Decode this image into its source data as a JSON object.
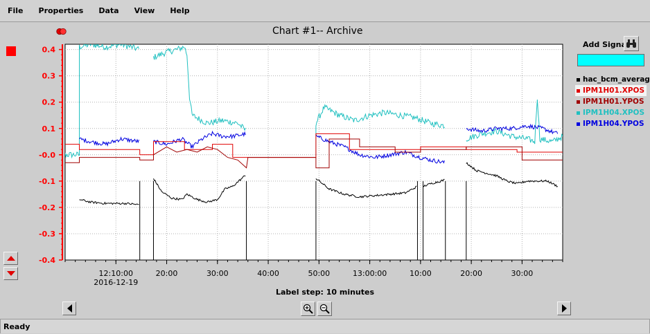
{
  "menu": [
    "File",
    "Properties",
    "Data",
    "View",
    "Help"
  ],
  "status": "Ready",
  "add_signal_label": "Add Signal",
  "add_signal_value": "",
  "label_step": "Label step: 10 minutes",
  "colors": {
    "axis": "#ff0000",
    "hac_bcm_average": "#000000",
    "IPM1H01.XPOS": "#e00000",
    "IPM1H01.YPOS": "#a00000",
    "IPM1H04.XPOS": "#20c0c0",
    "IPM1H04.YPOS": "#0000e0"
  },
  "chart_data": {
    "type": "line",
    "title": "Chart #1-- Archive",
    "xlabel": "",
    "ylabel": "",
    "ylim": [
      -0.4,
      0.42
    ],
    "y_ticks": [
      "0.4",
      "0.3",
      "0.2",
      "0.1",
      "-0.0",
      "-0.1",
      "-0.2",
      "-0.3",
      "-0.4"
    ],
    "y_tick_values": [
      0.4,
      0.3,
      0.2,
      0.1,
      0.0,
      -0.1,
      -0.2,
      -0.3,
      -0.4
    ],
    "x_ticks": [
      "12:10:00",
      "20:00",
      "30:00",
      "40:00",
      "50:00",
      "13:00:00",
      "10:00",
      "20:00",
      "30:00"
    ],
    "x_tick_minutes": [
      10,
      20,
      30,
      40,
      50,
      60,
      70,
      80,
      90
    ],
    "x_sublabel": "2016-12-19",
    "xlim_minutes": [
      0,
      98
    ],
    "grid": true,
    "legend_position": "right",
    "series": [
      {
        "name": "hac_bcm_average",
        "gaps": [
          [
            14.7,
            17.4
          ],
          [
            35.7,
            49.4
          ],
          [
            69.4,
            70.5
          ],
          [
            74.9,
            79.0
          ]
        ],
        "points": [
          [
            2.8,
            -0.17
          ],
          [
            5,
            -0.18
          ],
          [
            8,
            -0.185
          ],
          [
            12,
            -0.185
          ],
          [
            14.7,
            -0.19
          ],
          [
            17.4,
            -0.09
          ],
          [
            19,
            -0.14
          ],
          [
            21,
            -0.165
          ],
          [
            23,
            -0.17
          ],
          [
            24,
            -0.15
          ],
          [
            26,
            -0.17
          ],
          [
            28,
            -0.18
          ],
          [
            30,
            -0.17
          ],
          [
            31.5,
            -0.13
          ],
          [
            33,
            -0.12
          ],
          [
            35.7,
            -0.075
          ],
          [
            49.4,
            -0.09
          ],
          [
            52,
            -0.13
          ],
          [
            55,
            -0.15
          ],
          [
            58,
            -0.16
          ],
          [
            61,
            -0.155
          ],
          [
            64,
            -0.15
          ],
          [
            67,
            -0.145
          ],
          [
            69.4,
            -0.12
          ],
          [
            70.5,
            -0.12
          ],
          [
            72,
            -0.11
          ],
          [
            74.9,
            -0.095
          ],
          [
            79,
            -0.03
          ],
          [
            81,
            -0.06
          ],
          [
            83,
            -0.07
          ],
          [
            85,
            -0.08
          ],
          [
            87,
            -0.1
          ],
          [
            89,
            -0.11
          ],
          [
            91,
            -0.1
          ],
          [
            93,
            -0.1
          ],
          [
            95,
            -0.1
          ],
          [
            97,
            -0.12
          ]
        ]
      },
      {
        "name": "IPM1H01.XPOS",
        "points": [
          [
            -2,
            0.04
          ],
          [
            2.8,
            0.04
          ],
          [
            2.8,
            0.02
          ],
          [
            14.7,
            0.02
          ],
          [
            14.7,
            0.0
          ],
          [
            17.4,
            0.0
          ],
          [
            17.4,
            0.05
          ],
          [
            23.5,
            0.05
          ],
          [
            23.5,
            0.02
          ],
          [
            29,
            0.02
          ],
          [
            29,
            0.04
          ],
          [
            33,
            0.04
          ],
          [
            33,
            -0.01
          ],
          [
            36,
            -0.01
          ],
          [
            36,
            -0.01
          ],
          [
            49.4,
            -0.01
          ],
          [
            49.4,
            0.08
          ],
          [
            56,
            0.08
          ],
          [
            56,
            0.02
          ],
          [
            63,
            0.02
          ],
          [
            63,
            0.02
          ],
          [
            70,
            0.02
          ],
          [
            70,
            0.03
          ],
          [
            79,
            0.03
          ],
          [
            79,
            0.02
          ],
          [
            89,
            0.02
          ],
          [
            89,
            0.01
          ],
          [
            98,
            0.01
          ]
        ]
      },
      {
        "name": "IPM1H01.YPOS",
        "points": [
          [
            -2,
            -0.03
          ],
          [
            2.8,
            -0.03
          ],
          [
            2.8,
            -0.01
          ],
          [
            14.7,
            -0.01
          ],
          [
            14.7,
            -0.02
          ],
          [
            17.4,
            -0.02
          ],
          [
            17.4,
            0.0
          ],
          [
            20,
            0.03
          ],
          [
            22,
            0.01
          ],
          [
            24,
            0.02
          ],
          [
            26,
            0.01
          ],
          [
            28,
            0.03
          ],
          [
            30,
            0.02
          ],
          [
            32,
            -0.01
          ],
          [
            34,
            -0.02
          ],
          [
            35.7,
            -0.05
          ],
          [
            36,
            -0.01
          ],
          [
            49.4,
            -0.01
          ],
          [
            49.4,
            -0.05
          ],
          [
            52,
            -0.05
          ],
          [
            52,
            0.06
          ],
          [
            58,
            0.06
          ],
          [
            58,
            0.03
          ],
          [
            65,
            0.03
          ],
          [
            65,
            0.01
          ],
          [
            70,
            0.01
          ],
          [
            70,
            0.02
          ],
          [
            79,
            0.02
          ],
          [
            79,
            0.03
          ],
          [
            90,
            0.03
          ],
          [
            90,
            -0.02
          ],
          [
            98,
            -0.02
          ]
        ]
      },
      {
        "name": "IPM1H04.XPOS",
        "gaps": [
          [
            14.7,
            17.4
          ],
          [
            35.7,
            49.4
          ],
          [
            74.9,
            79.0
          ]
        ],
        "points": [
          [
            -2,
            0.0
          ],
          [
            2.8,
            0.0
          ],
          [
            2.8,
            0.41
          ],
          [
            5,
            0.42
          ],
          [
            8,
            0.41
          ],
          [
            11,
            0.42
          ],
          [
            14.7,
            0.4
          ],
          [
            17.4,
            0.37
          ],
          [
            20,
            0.39
          ],
          [
            22,
            0.4
          ],
          [
            23.5,
            0.41
          ],
          [
            24,
            0.38
          ],
          [
            24.5,
            0.22
          ],
          [
            25,
            0.15
          ],
          [
            28,
            0.12
          ],
          [
            31,
            0.13
          ],
          [
            34,
            0.12
          ],
          [
            35.7,
            0.09
          ],
          [
            36,
            0.0
          ],
          [
            49.4,
            0.0
          ],
          [
            49.4,
            0.12
          ],
          [
            51,
            0.18
          ],
          [
            54,
            0.15
          ],
          [
            57,
            0.13
          ],
          [
            60,
            0.15
          ],
          [
            63,
            0.16
          ],
          [
            66,
            0.15
          ],
          [
            69,
            0.14
          ],
          [
            72,
            0.12
          ],
          [
            74.9,
            0.11
          ],
          [
            79,
            0.06
          ],
          [
            82,
            0.08
          ],
          [
            85,
            0.09
          ],
          [
            88,
            0.07
          ],
          [
            91,
            0.06
          ],
          [
            92.5,
            0.05
          ],
          [
            93,
            0.22
          ],
          [
            93.5,
            0.06
          ],
          [
            96,
            0.05
          ],
          [
            98,
            0.07
          ]
        ]
      },
      {
        "name": "IPM1H04.YPOS",
        "gaps": [
          [
            14.7,
            17.4
          ],
          [
            35.7,
            49.4
          ],
          [
            74.9,
            79.0
          ]
        ],
        "points": [
          [
            2.8,
            0.06
          ],
          [
            5,
            0.05
          ],
          [
            8,
            0.04
          ],
          [
            11,
            0.06
          ],
          [
            14.7,
            0.05
          ],
          [
            17.4,
            0.05
          ],
          [
            20,
            0.04
          ],
          [
            23,
            0.06
          ],
          [
            25,
            0.03
          ],
          [
            27,
            0.06
          ],
          [
            29,
            0.08
          ],
          [
            31,
            0.07
          ],
          [
            33,
            0.07
          ],
          [
            35.7,
            0.08
          ],
          [
            49.4,
            0.07
          ],
          [
            52,
            0.05
          ],
          [
            55,
            0.03
          ],
          [
            58,
            0.0
          ],
          [
            61,
            -0.01
          ],
          [
            64,
            0.0
          ],
          [
            67,
            0.01
          ],
          [
            70,
            -0.01
          ],
          [
            72,
            -0.02
          ],
          [
            74.9,
            -0.03
          ],
          [
            79,
            0.1
          ],
          [
            82,
            0.09
          ],
          [
            85,
            0.1
          ],
          [
            88,
            0.1
          ],
          [
            91,
            0.11
          ],
          [
            94,
            0.1
          ],
          [
            97,
            0.08
          ]
        ]
      }
    ]
  }
}
